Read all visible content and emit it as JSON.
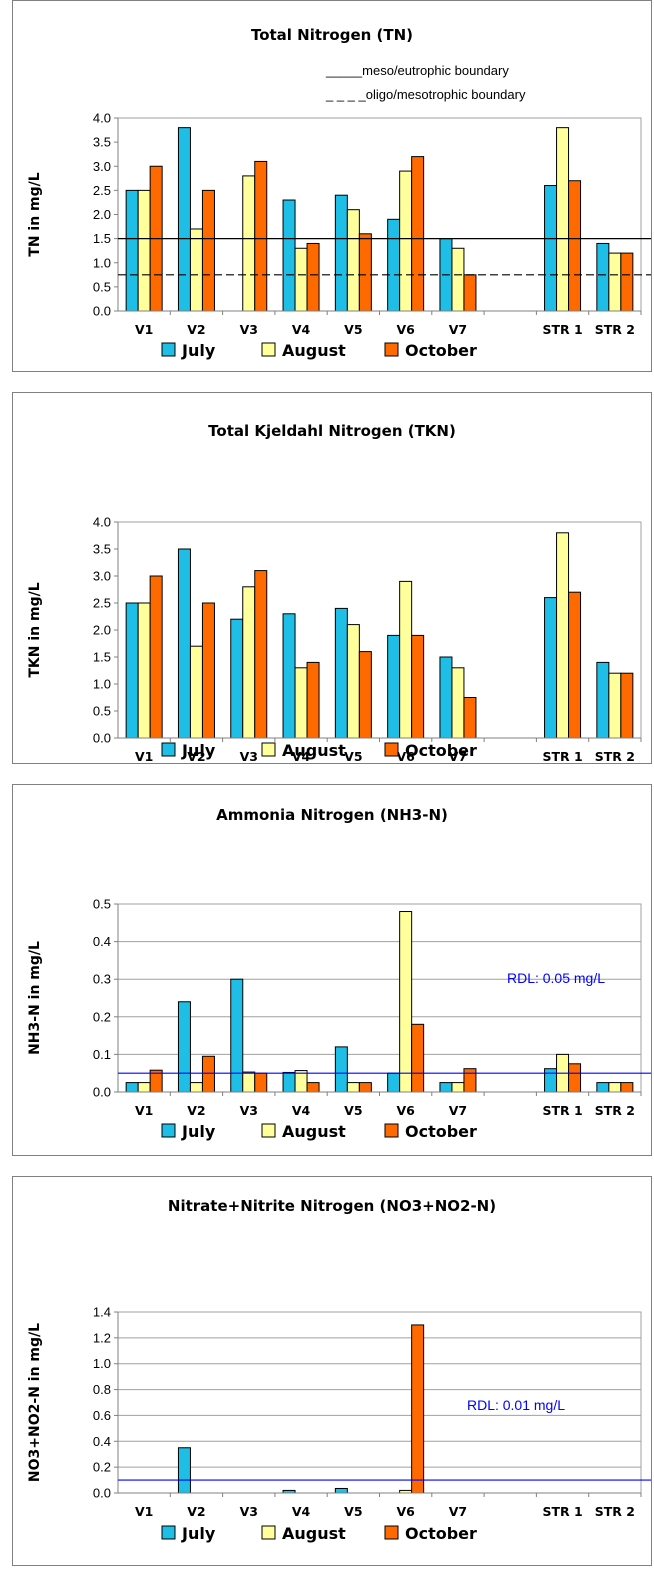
{
  "chart_data": [
    {
      "type": "bar",
      "title": "Total Nitrogen (TN)",
      "ylabel": "TN in mg/L",
      "ylim": [
        0,
        4.0
      ],
      "ystep": 0.5,
      "yfmt": 1,
      "categories": [
        "V1",
        "V2",
        "V3",
        "V4",
        "V5",
        "V6",
        "V7",
        "",
        "STR 1",
        "STR 2"
      ],
      "series": [
        {
          "name": "July",
          "values": [
            2.5,
            3.8,
            null,
            2.3,
            2.4,
            1.9,
            1.5,
            null,
            2.6,
            1.4
          ]
        },
        {
          "name": "August",
          "values": [
            2.5,
            1.7,
            2.8,
            1.3,
            2.1,
            2.9,
            1.3,
            null,
            3.8,
            1.2
          ]
        },
        {
          "name": "October",
          "values": [
            3.0,
            2.5,
            3.1,
            1.4,
            1.6,
            3.2,
            0.75,
            null,
            2.7,
            1.2
          ]
        }
      ],
      "reference_lines": [
        {
          "value": 1.5,
          "style": "solid",
          "color": "#000000"
        },
        {
          "value": 0.75,
          "style": "dashed",
          "color": "#000000"
        }
      ],
      "annotations": [
        "_____meso/eutrophic boundary",
        "_ _ _ _oligo/mesotrophic boundary"
      ],
      "grid": false,
      "legend": "bottom"
    },
    {
      "type": "bar",
      "title": "Total Kjeldahl Nitrogen (TKN)",
      "ylabel": "TKN in mg/L",
      "ylim": [
        0,
        4.0
      ],
      "ystep": 0.5,
      "yfmt": 1,
      "categories": [
        "V1",
        "V2",
        "V3",
        "V4",
        "V5",
        "V6",
        "V7",
        "",
        "STR 1",
        "STR 2"
      ],
      "series": [
        {
          "name": "July",
          "values": [
            2.5,
            3.5,
            2.2,
            2.3,
            2.4,
            1.9,
            1.5,
            null,
            2.6,
            1.4
          ]
        },
        {
          "name": "August",
          "values": [
            2.5,
            1.7,
            2.8,
            1.3,
            2.1,
            2.9,
            1.3,
            null,
            3.8,
            1.2
          ]
        },
        {
          "name": "October",
          "values": [
            3.0,
            2.5,
            3.1,
            1.4,
            1.6,
            1.9,
            0.75,
            null,
            2.7,
            1.2
          ]
        }
      ],
      "reference_lines": [],
      "annotations": [],
      "grid": false,
      "legend": "bottom"
    },
    {
      "type": "bar",
      "title": "Ammonia Nitrogen (NH3-N)",
      "ylabel": "NH3-N in mg/L",
      "ylim": [
        0,
        0.5
      ],
      "ystep": 0.1,
      "yfmt": 1,
      "categories": [
        "V1",
        "V2",
        "V3",
        "V4",
        "V5",
        "V6",
        "V7",
        "",
        "STR 1",
        "STR 2"
      ],
      "series": [
        {
          "name": "July",
          "values": [
            0.025,
            0.24,
            0.3,
            0.052,
            0.12,
            0.05,
            0.025,
            null,
            0.062,
            0.025
          ]
        },
        {
          "name": "August",
          "values": [
            0.025,
            0.025,
            0.053,
            0.057,
            0.025,
            0.48,
            0.025,
            null,
            0.1,
            0.025
          ]
        },
        {
          "name": "October",
          "values": [
            0.058,
            0.095,
            0.05,
            0.025,
            0.025,
            0.18,
            0.062,
            null,
            0.075,
            0.025
          ]
        }
      ],
      "reference_lines": [
        {
          "value": 0.05,
          "style": "solid",
          "color": "#0000ff"
        }
      ],
      "annotations": [
        "RDL: 0.05 mg/L"
      ],
      "grid": true,
      "legend": "bottom"
    },
    {
      "type": "bar",
      "title": "Nitrate+Nitrite Nitrogen (NO3+NO2-N)",
      "ylabel": "NO3+NO2-N in mg/L",
      "ylim": [
        0,
        1.4
      ],
      "ystep": 0.2,
      "yfmt": 1,
      "categories": [
        "V1",
        "V2",
        "V3",
        "V4",
        "V5",
        "V6",
        "V7",
        "",
        "STR 1",
        "STR 2"
      ],
      "series": [
        {
          "name": "July",
          "values": [
            null,
            0.35,
            null,
            0.02,
            0.035,
            null,
            null,
            null,
            null,
            null
          ]
        },
        {
          "name": "August",
          "values": [
            null,
            null,
            null,
            null,
            null,
            0.02,
            null,
            null,
            null,
            null
          ]
        },
        {
          "name": "October",
          "values": [
            null,
            null,
            null,
            null,
            null,
            1.3,
            null,
            null,
            null,
            null
          ]
        }
      ],
      "reference_lines": [
        {
          "value": 0.1,
          "style": "solid",
          "color": "#0000ff"
        }
      ],
      "annotations": [
        "RDL: 0.01 mg/L"
      ],
      "grid": true,
      "legend": "bottom"
    }
  ],
  "colors": {
    "July": "#1ebee6",
    "August": "#ffff9c",
    "October": "#ff6a00"
  }
}
